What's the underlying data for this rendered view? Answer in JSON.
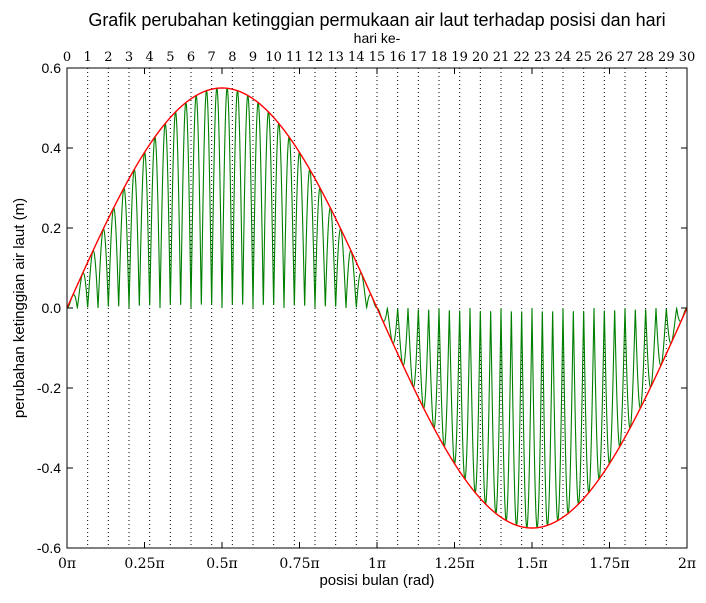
{
  "chart_data": {
    "type": "line",
    "title": "Grafik perubahan ketinggian permukaan air laut terhadap posisi dan hari",
    "xlabel": "posisi bulan (rad)",
    "ylabel": "perubahan ketinggian air laut (m)",
    "top_xlabel": "hari ke-",
    "xlim_rad_over_pi": [
      0,
      2
    ],
    "ylim": [
      -0.6,
      0.6
    ],
    "x_ticks": [
      "0π",
      "0.25π",
      "0.5π",
      "0.75π",
      "1π",
      "1.25π",
      "1.5π",
      "1.75π",
      "2π"
    ],
    "y_ticks": [
      0.6,
      0.4,
      0.2,
      0.0,
      -0.2,
      -0.4,
      -0.6
    ],
    "y_tick_labels": [
      "0.6",
      "0.4",
      "0.2",
      "0.0",
      "-0.2",
      "-0.4",
      "-0.6"
    ],
    "top_ticks": [
      "0",
      "1",
      "2",
      "3",
      "4",
      "5",
      "6",
      "7",
      "8",
      "9",
      "10",
      "11",
      "12",
      "13",
      "14",
      "15",
      "16",
      "17",
      "18",
      "19",
      "20",
      "21",
      "22",
      "23",
      "24",
      "25",
      "26",
      "27",
      "28",
      "29",
      "30"
    ],
    "day_gridlines": "dotted vertical line at each day 1–29",
    "series": [
      {
        "color": "#ff0000",
        "style": "envelope",
        "formula": "y = 0.55 · sin(x)",
        "amplitude": 0.55
      },
      {
        "color": "#008000",
        "style": "oscillation",
        "formula": "y = 0.55 · sin(x) · |sin(30x)|",
        "amplitude": 0.55,
        "cycles_per_day": 1
      }
    ],
    "grid": false,
    "legend": "none"
  }
}
